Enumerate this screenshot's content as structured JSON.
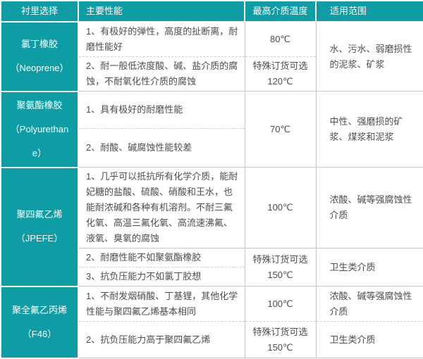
{
  "colors": {
    "accent": "#0e9da4",
    "border": "#c6c6c6",
    "text": "#4d4d4d",
    "header_text": "#ffffff"
  },
  "table": {
    "headers": [
      "衬里选择",
      "主要性能",
      "最高介质温度",
      "适用范围"
    ],
    "groups": [
      {
        "name": "氯丁橡胶\n（Neoprene）",
        "rows": [
          {
            "perf": "1、有极好的弹性，高度的扯断离，耐磨性能好",
            "temp": "80℃",
            "range": "水、污水、弱磨损性的泥浆、矿浆"
          },
          {
            "perf": "2、耐一般低浓度酸、碱、盐介质的腐蚀，不耐氧化性介质的腐蚀",
            "temp": "特殊订货可选\n120℃"
          }
        ]
      },
      {
        "name": "聚氨酯橡胶\n（Polyurethane）",
        "rows": [
          {
            "perf": "1、具有极好的耐磨性能",
            "temp": "70℃",
            "range": "中性、强磨损的矿浆、煤浆和泥浆"
          },
          {
            "perf": "2、耐酸、碱腐蚀性能较差"
          }
        ]
      },
      {
        "name": "聚四氟乙烯\n（JPEFE）",
        "rows": [
          {
            "perf": "1、几乎可以抵抗所有化学介质，能耐妃糖的盐酸、硫酸、硝酸和王水，也能耐浓碱和各种有机溶剂。不耐三氟化氧、高温三氟化氧、高流速沸氟、液氧、臭氧的腐蚀",
            "temp": "100℃",
            "range": "浓酸、碱等强腐蚀性介质"
          },
          {
            "perf": "2、耐磨性能不如聚氨酯橡胶",
            "temp": "特殊订货可选\n150℃",
            "range": "卫生类介质"
          },
          {
            "perf": "3、抗负压能力不如氯丁胶想"
          }
        ]
      },
      {
        "name": "聚全氟乙丙烯\n（F46）",
        "rows": [
          {
            "perf": "1、不耐发烟硝酸、丁基锂，其他化学性能与聚四氟乙烯基本相同",
            "temp": "100℃",
            "range": "浓酸、碱等强腐蚀性介质"
          },
          {
            "perf": "2、抗负压能力高于聚四氟乙烯",
            "temp": "特殊订货可选\n150℃",
            "range": "卫生类介质"
          }
        ]
      }
    ]
  }
}
